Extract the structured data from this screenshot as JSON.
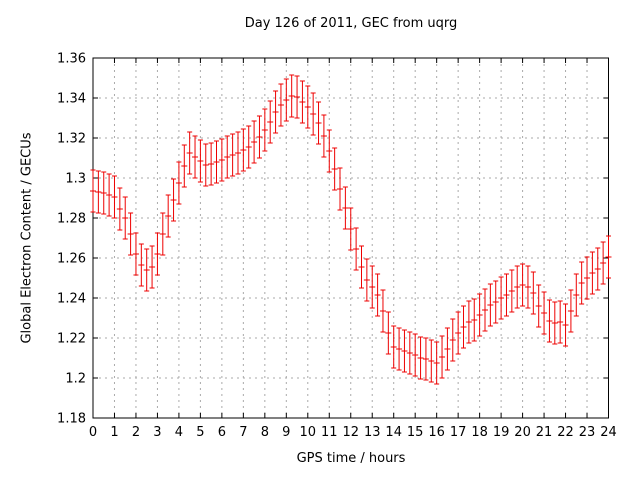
{
  "figure": {
    "background": "#ffffff",
    "axis_color": "#000000",
    "grid_color": "#aaaaaa"
  },
  "chart_data": {
    "type": "scatter",
    "style": "yerrorbars",
    "title": "Day 126 of 2011, GEC from uqrg",
    "xlabel": "GPS time / hours",
    "ylabel": "Global Electron Content / GECUs",
    "xlim": [
      0,
      24
    ],
    "ylim": [
      1.18,
      1.36
    ],
    "x_ticks": [
      0,
      1,
      2,
      3,
      4,
      5,
      6,
      7,
      8,
      9,
      10,
      11,
      12,
      13,
      14,
      15,
      16,
      17,
      18,
      19,
      20,
      21,
      22,
      23,
      24
    ],
    "y_ticks": [
      "1.18",
      "1.2",
      "1.22",
      "1.24",
      "1.26",
      "1.28",
      "1.3",
      "1.32",
      "1.34",
      "1.36"
    ],
    "grid": true,
    "legend": "none",
    "series": [
      {
        "name": "GEC",
        "color": "#ee0000",
        "yerr": 0.0105,
        "x": [
          0,
          0.25,
          0.5,
          0.75,
          1,
          1.25,
          1.5,
          1.75,
          2,
          2.25,
          2.5,
          2.75,
          3,
          3.25,
          3.5,
          3.75,
          4,
          4.25,
          4.5,
          4.75,
          5,
          5.25,
          5.5,
          5.75,
          6,
          6.25,
          6.5,
          6.75,
          7,
          7.25,
          7.5,
          7.75,
          8,
          8.25,
          8.5,
          8.75,
          9,
          9.25,
          9.5,
          9.75,
          10,
          10.25,
          10.5,
          10.75,
          11,
          11.25,
          11.5,
          11.75,
          12,
          12.25,
          12.5,
          12.75,
          13,
          13.25,
          13.5,
          13.75,
          14,
          14.25,
          14.5,
          14.75,
          15,
          15.25,
          15.5,
          15.75,
          16,
          16.25,
          16.5,
          16.75,
          17,
          17.25,
          17.5,
          17.75,
          18,
          18.25,
          18.5,
          18.75,
          19,
          19.25,
          19.5,
          19.75,
          20,
          20.25,
          20.5,
          20.75,
          21,
          21.25,
          21.5,
          21.75,
          22,
          22.25,
          22.5,
          22.75,
          23,
          23.25,
          23.5,
          23.75,
          24
        ],
        "y": [
          1.2935,
          1.293,
          1.2925,
          1.2915,
          1.2905,
          1.2845,
          1.28,
          1.272,
          1.262,
          1.2565,
          1.254,
          1.2555,
          1.262,
          1.272,
          1.281,
          1.289,
          1.2975,
          1.306,
          1.3125,
          1.3105,
          1.3085,
          1.3065,
          1.307,
          1.308,
          1.309,
          1.3105,
          1.3115,
          1.3125,
          1.314,
          1.3155,
          1.318,
          1.3205,
          1.324,
          1.328,
          1.333,
          1.3365,
          1.339,
          1.341,
          1.3405,
          1.338,
          1.3355,
          1.332,
          1.3275,
          1.321,
          1.3135,
          1.3045,
          1.2945,
          1.285,
          1.2745,
          1.2645,
          1.2555,
          1.249,
          1.2455,
          1.2415,
          1.2335,
          1.2225,
          1.2155,
          1.2145,
          1.2135,
          1.2125,
          1.2115,
          1.21,
          1.2095,
          1.2085,
          1.2075,
          1.2105,
          1.2145,
          1.219,
          1.2225,
          1.2255,
          1.228,
          1.229,
          1.2315,
          1.234,
          1.2365,
          1.238,
          1.24,
          1.2415,
          1.2435,
          1.2455,
          1.2465,
          1.2455,
          1.2425,
          1.236,
          1.2325,
          1.2285,
          1.2275,
          1.228,
          1.2265,
          1.2335,
          1.2415,
          1.2475,
          1.25,
          1.2525,
          1.2545,
          1.2575,
          1.2605
        ]
      }
    ]
  }
}
